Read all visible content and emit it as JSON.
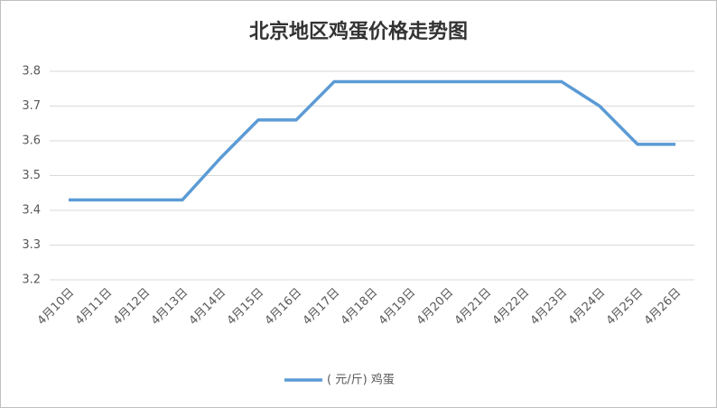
{
  "chart_data": {
    "type": "line",
    "title": "北京地区鸡蛋价格走势图",
    "categories": [
      "4月10日",
      "4月11日",
      "4月12日",
      "4月13日",
      "4月14日",
      "4月15日",
      "4月16日",
      "4月17日",
      "4月18日",
      "4月19日",
      "4月20日",
      "4月21日",
      "4月22日",
      "4月23日",
      "4月24日",
      "4月25日",
      "4月26日"
    ],
    "series": [
      {
        "name": "( 元/斤)  鸡蛋",
        "color": "#5b9bd5",
        "values": [
          3.43,
          3.43,
          3.43,
          3.43,
          3.55,
          3.66,
          3.66,
          3.77,
          3.77,
          3.77,
          3.77,
          3.77,
          3.77,
          3.77,
          3.7,
          3.59,
          3.59
        ]
      }
    ],
    "ylim": [
      3.2,
      3.8
    ],
    "yticks": [
      3.2,
      3.3,
      3.4,
      3.5,
      3.6,
      3.7,
      3.8
    ],
    "grid": true,
    "legend": "bottom"
  }
}
